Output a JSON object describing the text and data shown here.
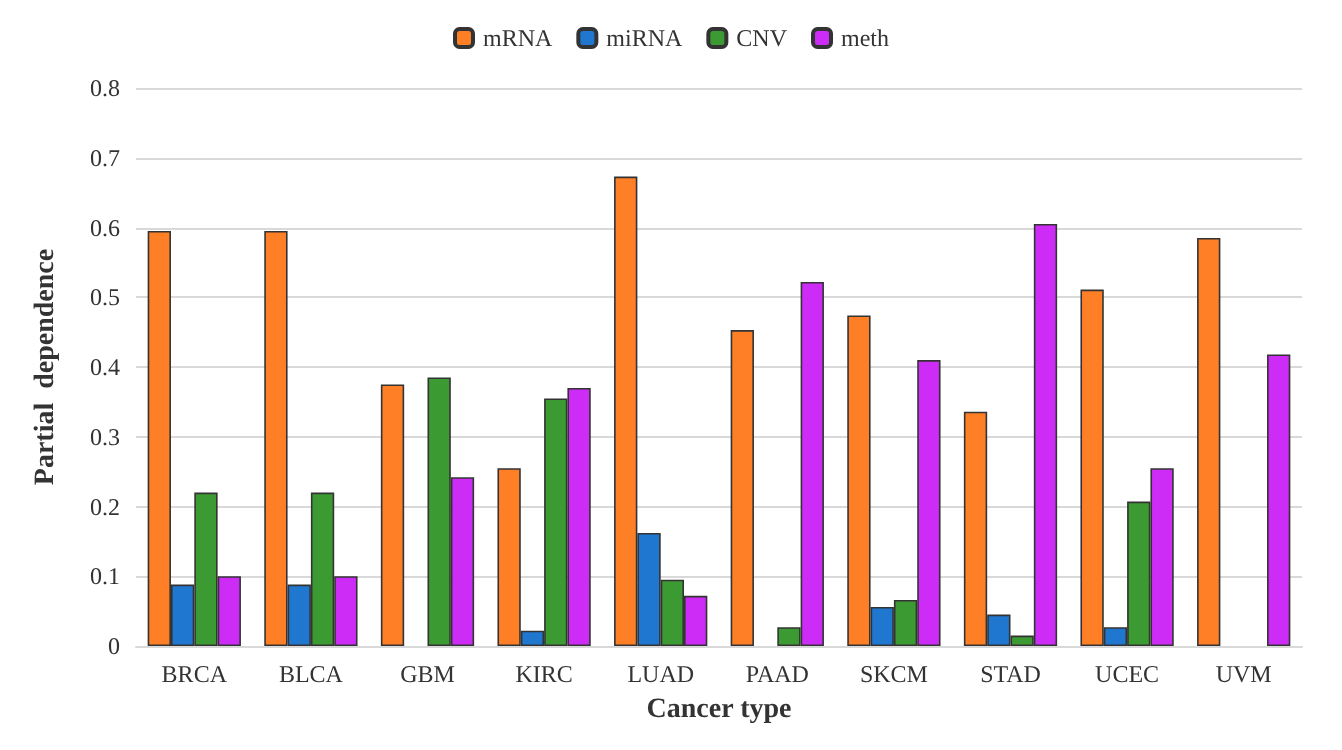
{
  "chart_data": {
    "type": "bar",
    "xlabel": "Cancer type",
    "ylabel": "Partial  dependence",
    "categories": [
      "BRCA",
      "BLCA",
      "GBM",
      "KIRC",
      "LUAD",
      "PAAD",
      "SKCM",
      "STAD",
      "UCEC",
      "UVM"
    ],
    "series": [
      {
        "name": "mRNA",
        "color": "#ff7f27",
        "values": [
          0.595,
          0.595,
          0.375,
          0.255,
          0.673,
          0.453,
          0.474,
          0.336,
          0.511,
          0.585
        ]
      },
      {
        "name": "miRNA",
        "color": "#1f77d0",
        "values": [
          0.088,
          0.088,
          null,
          0.022,
          0.162,
          null,
          0.056,
          0.045,
          0.027,
          null
        ]
      },
      {
        "name": "CNV",
        "color": "#3c9a32",
        "values": [
          0.22,
          0.22,
          0.385,
          0.355,
          0.095,
          0.027,
          0.066,
          0.015,
          0.207,
          null
        ]
      },
      {
        "name": "meth",
        "color": "#cc2cf5",
        "values": [
          0.1,
          0.1,
          0.242,
          0.37,
          0.072,
          0.522,
          0.41,
          0.605,
          0.255,
          0.418
        ]
      }
    ],
    "ylim": [
      0,
      0.8
    ],
    "yticks": [
      0,
      0.1,
      0.2,
      0.3,
      0.4,
      0.5,
      0.6,
      0.7,
      0.8
    ],
    "grid": "y",
    "legend": "top"
  }
}
